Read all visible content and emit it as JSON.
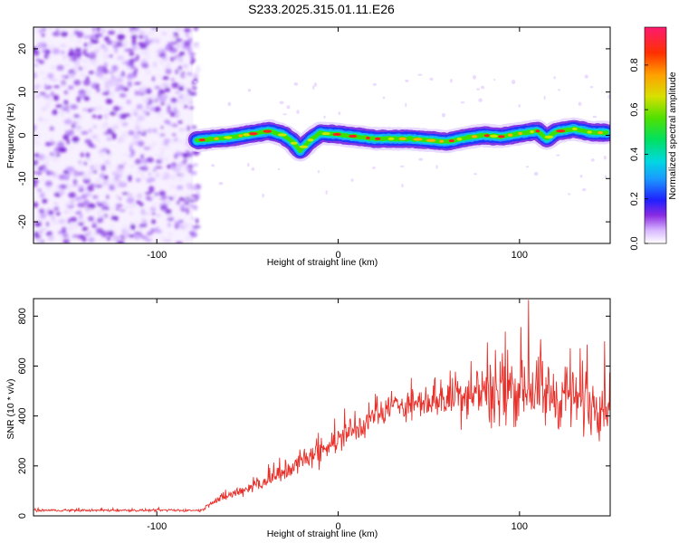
{
  "title": "S233.2025.315.01.11.E26",
  "chart_data": [
    {
      "type": "heatmap",
      "xlabel": "Height of straight line (km)",
      "ylabel": "Frequency (Hz)",
      "xlim": [
        -168,
        150
      ],
      "ylim": [
        -25,
        25
      ],
      "xticks": [
        -100,
        0,
        100
      ],
      "xtick_labels": [
        "-100",
        "0",
        "100"
      ],
      "yticks": [
        20,
        10,
        0,
        -10,
        -20
      ],
      "ytick_labels": [
        "20",
        "10",
        "0",
        "-10",
        "-20"
      ],
      "noise_region_x": [
        -168,
        -80
      ],
      "ridge": {
        "x": [
          -78,
          -60,
          -45,
          -38,
          -30,
          -25,
          -21,
          -15,
          -10,
          0,
          20,
          40,
          60,
          70,
          80,
          90,
          100,
          110,
          115,
          120,
          130,
          140,
          148
        ],
        "y": [
          -1.2,
          -0.5,
          0.5,
          1.0,
          0,
          -1.5,
          -3.5,
          -1.0,
          0.5,
          0.2,
          -0.8,
          -0.8,
          -1.5,
          -0.6,
          0,
          -0.3,
          0.4,
          1.0,
          -0.8,
          0.8,
          1.5,
          0.6,
          0.6
        ]
      },
      "colorbar": {
        "label": "Normalized spectral amplitude",
        "ticks": [
          0.0,
          0.2,
          0.4,
          0.6,
          0.8
        ],
        "tick_labels": [
          "0.0",
          "0.2",
          "0.4",
          "0.6",
          "0.8"
        ],
        "range": [
          0,
          0.97
        ]
      }
    },
    {
      "type": "line",
      "xlabel": "Height of straight line (km)",
      "ylabel": "SNR (10 * v/v)",
      "xlim": [
        -168,
        150
      ],
      "ylim": [
        0,
        870
      ],
      "xticks": [
        -100,
        0,
        100
      ],
      "xtick_labels": [
        "-100",
        "0",
        "100"
      ],
      "yticks": [
        0,
        200,
        400,
        600,
        800
      ],
      "ytick_labels": [
        "0",
        "200",
        "400",
        "600",
        "800"
      ],
      "color": "#e8302a",
      "series": [
        {
          "name": "SNR",
          "envelope_x": [
            -168,
            -75,
            -70,
            -50,
            -30,
            -10,
            10,
            20,
            30,
            50,
            60,
            80,
            100,
            120,
            150
          ],
          "mean_y": [
            22,
            22,
            55,
            110,
            170,
            260,
            350,
            390,
            440,
            460,
            480,
            490,
            500,
            480,
            450
          ],
          "amplitude_y": [
            10,
            10,
            30,
            50,
            80,
            110,
            120,
            100,
            90,
            150,
            200,
            250,
            260,
            270,
            260
          ],
          "peak": {
            "x": 105,
            "y": 865
          }
        }
      ]
    }
  ]
}
